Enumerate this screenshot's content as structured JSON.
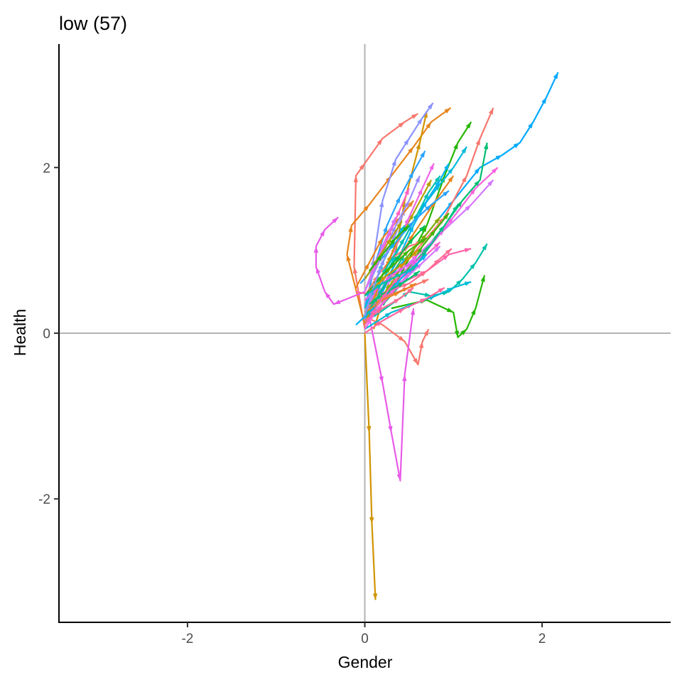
{
  "chart_data": {
    "type": "line",
    "title": "low (57)",
    "xlabel": "Gender",
    "ylabel": "Health",
    "xlim": [
      -3.45,
      3.45
    ],
    "ylim": [
      -3.49,
      3.49
    ],
    "x_ticks": [
      -2,
      0,
      2
    ],
    "y_ticks": [
      -2,
      0,
      2
    ],
    "x_tick_labels": [
      "-2",
      "0",
      "2"
    ],
    "y_tick_labels": [
      "-2",
      "0",
      "2"
    ],
    "reference_lines": {
      "x": 0,
      "y": 0,
      "color": "#b3b3b3"
    },
    "grid": false,
    "legend": "none",
    "arrows": true,
    "colors": [
      "#F8766D",
      "#E7851E",
      "#D09400",
      "#B2A100",
      "#89AC00",
      "#45B500",
      "#00BC51",
      "#00C087",
      "#00C0B2",
      "#00BCD6",
      "#00B3F2",
      "#29A3FF",
      "#9C8DFF",
      "#D277FF",
      "#F166E8",
      "#FF61C7",
      "#FF689E",
      "#FF6C91"
    ],
    "series": [
      {
        "color": "#F8766D",
        "x": [
          0.0,
          -0.12,
          -0.1,
          0.0,
          0.2,
          0.45,
          0.6
        ],
        "y": [
          0.05,
          0.8,
          1.9,
          2.05,
          2.35,
          2.55,
          2.65
        ]
      },
      {
        "color": "#E7851E",
        "x": [
          0.0,
          -0.2,
          -0.15,
          0.05,
          0.3,
          0.55,
          0.75,
          0.97
        ],
        "y": [
          0.1,
          0.95,
          1.3,
          1.55,
          1.9,
          2.25,
          2.55,
          2.72
        ]
      },
      {
        "color": "#D09400",
        "x": [
          0.0,
          0.05,
          0.08,
          0.12
        ],
        "y": [
          0.0,
          -1.2,
          -2.3,
          -3.22
        ]
      },
      {
        "color": "#D09400",
        "x": [
          0.1,
          0.3,
          0.45,
          0.62,
          0.7
        ],
        "y": [
          0.05,
          0.7,
          1.6,
          2.3,
          2.68
        ]
      },
      {
        "color": "#F8766D",
        "x": [
          0.0,
          0.2,
          0.45,
          0.6,
          0.65,
          0.72
        ],
        "y": [
          0.2,
          0.1,
          -0.1,
          -0.38,
          -0.1,
          0.05
        ]
      },
      {
        "color": "#00A9FF",
        "x": [
          0.0,
          0.3,
          0.7,
          1.0,
          1.3,
          1.55,
          1.75,
          1.9,
          2.05,
          2.18
        ],
        "y": [
          0.1,
          0.7,
          1.2,
          1.6,
          2.0,
          2.15,
          2.3,
          2.55,
          2.85,
          3.15
        ]
      },
      {
        "color": "#F8766D",
        "x": [
          0.0,
          0.5,
          0.9,
          1.15,
          1.3,
          1.45
        ],
        "y": [
          0.3,
          0.9,
          1.4,
          1.9,
          2.35,
          2.72
        ]
      },
      {
        "color": "#E85BE9",
        "x": [
          0.05,
          0.2,
          0.3,
          0.4,
          0.45,
          0.55
        ],
        "y": [
          0.2,
          -0.6,
          -1.2,
          -1.78,
          -0.5,
          0.3
        ]
      },
      {
        "color": "#E85BE9",
        "x": [
          0.0,
          -0.35,
          -0.45,
          -0.55,
          -0.55,
          -0.45,
          -0.3
        ],
        "y": [
          0.5,
          0.35,
          0.5,
          0.8,
          1.05,
          1.25,
          1.4
        ]
      },
      {
        "color": "#24B700",
        "x": [
          0.1,
          0.4,
          0.7,
          0.9,
          1.05,
          1.2
        ],
        "y": [
          0.2,
          0.7,
          1.3,
          1.9,
          2.3,
          2.55
        ]
      },
      {
        "color": "#24B700",
        "x": [
          0.3,
          0.7,
          1.0,
          1.05,
          1.15,
          1.25,
          1.35
        ],
        "y": [
          0.3,
          0.4,
          0.25,
          -0.05,
          0.05,
          0.3,
          0.7
        ]
      },
      {
        "color": "#00BE70",
        "x": [
          0.2,
          0.6,
          0.9,
          1.1,
          1.3,
          1.38
        ],
        "y": [
          0.4,
          0.9,
          1.3,
          1.6,
          1.85,
          2.3
        ]
      },
      {
        "color": "#00C1AB",
        "x": [
          0.1,
          0.5,
          0.75,
          0.95,
          1.1,
          1.25,
          1.38
        ],
        "y": [
          0.2,
          0.5,
          0.45,
          0.5,
          0.65,
          0.85,
          1.08
        ]
      },
      {
        "color": "#00BBDA",
        "x": [
          0.05,
          0.35,
          0.6,
          0.85,
          1.0,
          1.15
        ],
        "y": [
          0.3,
          0.95,
          1.45,
          1.8,
          2.0,
          2.25
        ]
      },
      {
        "color": "#8B93FF",
        "x": [
          0.0,
          0.1,
          0.2,
          0.35,
          0.5,
          0.65,
          0.77
        ],
        "y": [
          0.15,
          0.9,
          1.6,
          2.1,
          2.35,
          2.6,
          2.78
        ]
      },
      {
        "color": "#D575FE",
        "x": [
          0.0,
          0.3,
          0.6,
          0.9,
          1.2,
          1.45
        ],
        "y": [
          0.35,
          0.65,
          0.95,
          1.25,
          1.55,
          1.85
        ]
      },
      {
        "color": "#F962DD",
        "x": [
          0.0,
          0.35,
          0.7,
          1.0,
          1.25,
          1.5
        ],
        "y": [
          0.25,
          0.6,
          1.0,
          1.4,
          1.75,
          2.0
        ]
      },
      {
        "color": "#FF65AC",
        "x": [
          -0.1,
          0.15,
          0.4,
          0.7,
          0.95,
          1.2
        ],
        "y": [
          0.5,
          0.45,
          0.6,
          0.75,
          0.95,
          1.02
        ]
      },
      {
        "color": "#FF6C91",
        "x": [
          0.0,
          0.25,
          0.5,
          0.7,
          0.85,
          0.98
        ],
        "y": [
          0.4,
          0.5,
          0.6,
          0.75,
          0.9,
          1.02
        ]
      },
      {
        "color": "#E7851E",
        "x": [
          0.05,
          0.3,
          0.55,
          0.8,
          1.0
        ],
        "y": [
          0.25,
          0.75,
          1.2,
          1.6,
          1.9
        ]
      },
      {
        "color": "#B2A100",
        "x": [
          0.0,
          0.15,
          0.35,
          0.55,
          0.75
        ],
        "y": [
          0.2,
          0.6,
          1.05,
          1.45,
          1.85
        ]
      },
      {
        "color": "#00B3F2",
        "x": [
          0.0,
          0.2,
          0.4,
          0.55,
          0.7,
          0.85,
          0.95
        ],
        "y": [
          0.1,
          0.55,
          0.95,
          1.3,
          1.6,
          1.85,
          2.05
        ]
      },
      {
        "color": "#29A3FF",
        "x": [
          0.0,
          0.12,
          0.25,
          0.4,
          0.55,
          0.68
        ],
        "y": [
          0.3,
          0.85,
          1.3,
          1.65,
          1.95,
          2.2
        ]
      },
      {
        "color": "#F166E8",
        "x": [
          0.05,
          0.2,
          0.35,
          0.5,
          0.65,
          0.78
        ],
        "y": [
          0.35,
          0.7,
          1.05,
          1.4,
          1.75,
          2.05
        ]
      },
      {
        "color": "#00C087",
        "x": [
          0.0,
          0.25,
          0.5,
          0.7,
          0.9,
          1.05
        ],
        "y": [
          0.15,
          0.4,
          0.7,
          1.0,
          1.3,
          1.55
        ]
      },
      {
        "color": "#F8766D",
        "x": [
          0.0,
          0.15,
          0.3,
          0.5,
          0.65
        ],
        "y": [
          0.45,
          0.7,
          0.9,
          1.05,
          1.1
        ]
      },
      {
        "color": "#FF61C7",
        "x": [
          0.0,
          0.2,
          0.4,
          0.55,
          0.7,
          0.85
        ],
        "y": [
          0.1,
          0.35,
          0.6,
          0.8,
          0.95,
          1.1
        ]
      },
      {
        "color": "#00BCD6",
        "x": [
          0.0,
          0.3,
          0.55,
          0.8,
          1.0,
          1.2
        ],
        "y": [
          0.05,
          0.25,
          0.35,
          0.45,
          0.55,
          0.62
        ]
      },
      {
        "color": "#9C8DFF",
        "x": [
          0.0,
          0.1,
          0.22,
          0.35,
          0.45
        ],
        "y": [
          0.2,
          0.55,
          0.9,
          1.2,
          1.5
        ]
      },
      {
        "color": "#45B500",
        "x": [
          0.1,
          0.3,
          0.5,
          0.65,
          0.8,
          0.95
        ],
        "y": [
          0.3,
          0.55,
          0.8,
          1.05,
          1.25,
          1.45
        ]
      },
      {
        "color": "#D09400",
        "x": [
          0.0,
          0.1,
          0.2,
          0.3,
          0.4
        ],
        "y": [
          0.1,
          0.4,
          0.7,
          0.95,
          1.2
        ]
      },
      {
        "color": "#FF689E",
        "x": [
          0.0,
          0.2,
          0.45,
          0.7,
          0.9
        ],
        "y": [
          0.0,
          0.15,
          0.3,
          0.42,
          0.55
        ]
      },
      {
        "color": "#00C0B2",
        "x": [
          0.05,
          0.25,
          0.45,
          0.6,
          0.72,
          0.85
        ],
        "y": [
          0.4,
          0.8,
          1.15,
          1.45,
          1.7,
          1.9
        ]
      },
      {
        "color": "#D277FF",
        "x": [
          0.0,
          0.2,
          0.45,
          0.65,
          0.85
        ],
        "y": [
          0.25,
          0.45,
          0.65,
          0.85,
          1.05
        ]
      },
      {
        "color": "#89AC00",
        "x": [
          0.1,
          0.3,
          0.5,
          0.7,
          0.85
        ],
        "y": [
          0.3,
          0.6,
          0.95,
          1.2,
          1.4
        ]
      },
      {
        "color": "#29A3FF",
        "x": [
          -0.05,
          0.15,
          0.35,
          0.55,
          0.75,
          0.95
        ],
        "y": [
          0.6,
          0.85,
          1.1,
          1.35,
          1.55,
          1.72
        ]
      },
      {
        "color": "#F166E8",
        "x": [
          0.0,
          0.15,
          0.3,
          0.45,
          0.6
        ],
        "y": [
          0.05,
          0.3,
          0.5,
          0.75,
          0.95
        ]
      },
      {
        "color": "#E7851E",
        "x": [
          -0.1,
          0.05,
          0.2,
          0.4,
          0.55
        ],
        "y": [
          0.55,
          0.85,
          1.15,
          1.4,
          1.6
        ]
      },
      {
        "color": "#00B3F2",
        "x": [
          -0.1,
          0.05,
          0.22,
          0.4,
          0.55,
          0.7
        ],
        "y": [
          0.1,
          0.25,
          0.45,
          0.65,
          0.8,
          0.95
        ]
      },
      {
        "color": "#FF61C7",
        "x": [
          0.0,
          0.1,
          0.2,
          0.3,
          0.4,
          0.5
        ],
        "y": [
          0.5,
          0.75,
          1.0,
          1.25,
          1.5,
          1.75
        ]
      },
      {
        "color": "#00BC51",
        "x": [
          0.0,
          0.2,
          0.4,
          0.55,
          0.68
        ],
        "y": [
          0.45,
          0.7,
          0.95,
          1.15,
          1.3
        ]
      },
      {
        "color": "#F8766D",
        "x": [
          0.0,
          0.25,
          0.5,
          0.72
        ],
        "y": [
          0.3,
          0.45,
          0.55,
          0.65
        ]
      },
      {
        "color": "#9C8DFF",
        "x": [
          0.05,
          0.2,
          0.35,
          0.5,
          0.62
        ],
        "y": [
          0.6,
          0.95,
          1.3,
          1.6,
          1.9
        ]
      },
      {
        "color": "#00C087",
        "x": [
          0.0,
          0.15,
          0.3,
          0.45
        ],
        "y": [
          0.2,
          0.45,
          0.7,
          0.95
        ]
      },
      {
        "color": "#E85BE9",
        "x": [
          0.0,
          0.15,
          0.3,
          0.45,
          0.6
        ],
        "y": [
          0.4,
          0.55,
          0.7,
          0.8,
          0.88
        ]
      },
      {
        "color": "#D09400",
        "x": [
          0.05,
          0.25,
          0.45,
          0.6
        ],
        "y": [
          0.5,
          0.7,
          0.85,
          1.0
        ]
      },
      {
        "color": "#00BBDA",
        "x": [
          0.0,
          0.1,
          0.2,
          0.32,
          0.45
        ],
        "y": [
          0.3,
          0.55,
          0.85,
          1.1,
          1.3
        ]
      },
      {
        "color": "#FF6C91",
        "x": [
          0.0,
          0.2,
          0.4,
          0.55
        ],
        "y": [
          0.15,
          0.3,
          0.42,
          0.55
        ]
      },
      {
        "color": "#45B500",
        "x": [
          0.1,
          0.3,
          0.5,
          0.7
        ],
        "y": [
          0.6,
          0.8,
          1.0,
          1.15
        ]
      },
      {
        "color": "#D575FE",
        "x": [
          0.0,
          0.1,
          0.22,
          0.35
        ],
        "y": [
          0.5,
          0.8,
          1.1,
          1.4
        ]
      },
      {
        "color": "#00BE70",
        "x": [
          0.05,
          0.25,
          0.45,
          0.62
        ],
        "y": [
          0.35,
          0.5,
          0.62,
          0.75
        ]
      },
      {
        "color": "#B2A100",
        "x": [
          0.0,
          0.15,
          0.3,
          0.42
        ],
        "y": [
          0.65,
          0.9,
          1.15,
          1.35
        ]
      },
      {
        "color": "#E7851E",
        "x": [
          0.0,
          0.2,
          0.4,
          0.58
        ],
        "y": [
          0.25,
          0.4,
          0.5,
          0.6
        ]
      },
      {
        "color": "#8B93FF",
        "x": [
          0.0,
          0.08,
          0.18,
          0.28
        ],
        "y": [
          0.2,
          0.5,
          0.8,
          1.05
        ]
      },
      {
        "color": "#00C1AB",
        "x": [
          0.0,
          0.2,
          0.42,
          0.6
        ],
        "y": [
          0.45,
          0.6,
          0.72,
          0.82
        ]
      },
      {
        "color": "#FF65AC",
        "x": [
          0.0,
          0.12,
          0.25,
          0.38
        ],
        "y": [
          0.1,
          0.3,
          0.5,
          0.68
        ]
      },
      {
        "color": "#24B700",
        "x": [
          0.05,
          0.2,
          0.35,
          0.5
        ],
        "y": [
          0.75,
          0.95,
          1.15,
          1.3
        ]
      }
    ]
  }
}
